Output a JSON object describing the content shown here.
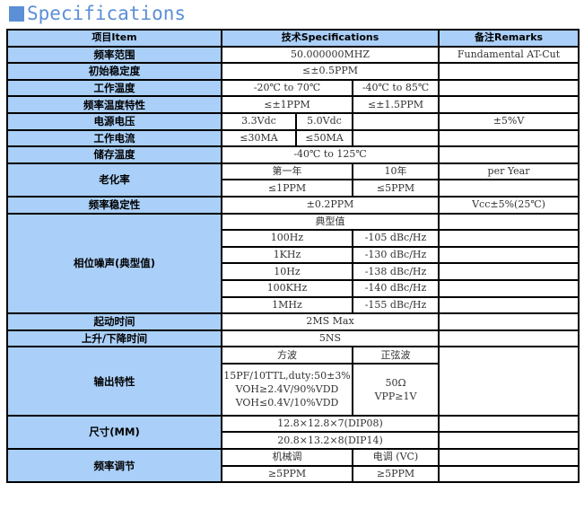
{
  "title": "Specifications",
  "header": [
    "项目Item",
    "技术Specifications",
    "备注Remarks"
  ],
  "rows": [
    [
      {
        "t": "频率范围",
        "l": 1
      },
      {
        "t": "50.000000MHZ",
        "c": 3
      },
      {
        "t": "Fundamental AT-Cut"
      }
    ],
    [
      {
        "t": "初始稳定度",
        "l": 1
      },
      {
        "t": "≤±0.5PPM",
        "c": 3
      },
      {
        "t": ""
      }
    ],
    [
      {
        "t": "工作温度",
        "l": 1
      },
      {
        "t": "-20℃ to 70℃",
        "c": 2
      },
      {
        "t": "-40℃ to 85℃"
      },
      {
        "t": ""
      }
    ],
    [
      {
        "t": "频率温度特性",
        "l": 1
      },
      {
        "t": "≤±1PPM",
        "c": 2
      },
      {
        "t": "≤±1.5PPM"
      },
      {
        "t": ""
      }
    ],
    [
      {
        "t": "电源电压",
        "l": 1
      },
      {
        "t": "3.3Vdc"
      },
      {
        "t": "5.0Vdc"
      },
      {
        "t": ""
      },
      {
        "t": "±5%V"
      }
    ],
    [
      {
        "t": "工作电流",
        "l": 1
      },
      {
        "t": "≤30MA"
      },
      {
        "t": "≤50MA"
      },
      {
        "t": ""
      },
      {
        "t": ""
      }
    ],
    [
      {
        "t": "储存温度",
        "l": 1
      },
      {
        "t": "-40℃ to 125℃",
        "c": 3
      },
      {
        "t": ""
      }
    ],
    [
      {
        "t": "老化率",
        "l": 1,
        "r": 2
      },
      {
        "t": "第一年",
        "c": 2
      },
      {
        "t": "10年"
      },
      {
        "t": "per Year"
      }
    ],
    [
      {
        "t": "≤1PPM",
        "c": 2
      },
      {
        "t": "≤5PPM"
      },
      {
        "t": ""
      }
    ],
    [
      {
        "t": "频率稳定性",
        "l": 1
      },
      {
        "t": "±0.2PPM",
        "c": 3
      },
      {
        "t": "Vcc±5%(25℃)"
      }
    ],
    [
      {
        "t": "相位噪声(典型值)",
        "l": 1,
        "r": 6
      },
      {
        "t": "典型值",
        "c": 3
      },
      {
        "t": ""
      }
    ],
    [
      {
        "t": "100Hz",
        "c": 2
      },
      {
        "t": "-105 dBc/Hz"
      },
      {
        "t": ""
      }
    ],
    [
      {
        "t": "1KHz",
        "c": 2
      },
      {
        "t": "-130 dBc/Hz"
      },
      {
        "t": ""
      }
    ],
    [
      {
        "t": "10Hz",
        "c": 2
      },
      {
        "t": "-138 dBc/Hz"
      },
      {
        "t": ""
      }
    ],
    [
      {
        "t": "100KHz",
        "c": 2
      },
      {
        "t": "-140 dBc/Hz"
      },
      {
        "t": ""
      }
    ],
    [
      {
        "t": "1MHz",
        "c": 2
      },
      {
        "t": "-155 dBc/Hz"
      },
      {
        "t": ""
      }
    ],
    [
      {
        "t": "起动时间",
        "l": 1
      },
      {
        "t": "2MS Max",
        "c": 3
      },
      {
        "t": ""
      }
    ],
    [
      {
        "t": "上升/下降时间",
        "l": 1
      },
      {
        "t": "5NS",
        "c": 3
      },
      {
        "t": ""
      }
    ],
    [
      {
        "t": "输出特性",
        "l": 1,
        "r": 2
      },
      {
        "t": "方波",
        "c": 2
      },
      {
        "t": "正弦波"
      },
      {
        "t": "",
        "r": 2
      }
    ],
    [
      {
        "t": "15PF/10TTL,duty:50±3%\nVOH≥2.4V/90%VDD\nVOH≤0.4V/10%VDD",
        "c": 2,
        "m": 1,
        "h": 56
      },
      {
        "t": "50Ω\nVPP≥1V",
        "m": 1
      }
    ],
    [
      {
        "t": "尺寸(MM)",
        "l": 1,
        "r": 2
      },
      {
        "t": "12.8×12.8×7(DIP08)",
        "c": 3
      },
      {
        "t": ""
      }
    ],
    [
      {
        "t": "20.8×13.2×8(DIP14)",
        "c": 3
      },
      {
        "t": ""
      }
    ],
    [
      {
        "t": "频率调节",
        "l": 1,
        "r": 2
      },
      {
        "t": "机械调",
        "c": 2
      },
      {
        "t": "电调 (VC)"
      },
      {
        "t": ""
      }
    ],
    [
      {
        "t": "≥5PPM",
        "c": 2
      },
      {
        "t": "≥5PPM"
      },
      {
        "t": ""
      }
    ]
  ]
}
